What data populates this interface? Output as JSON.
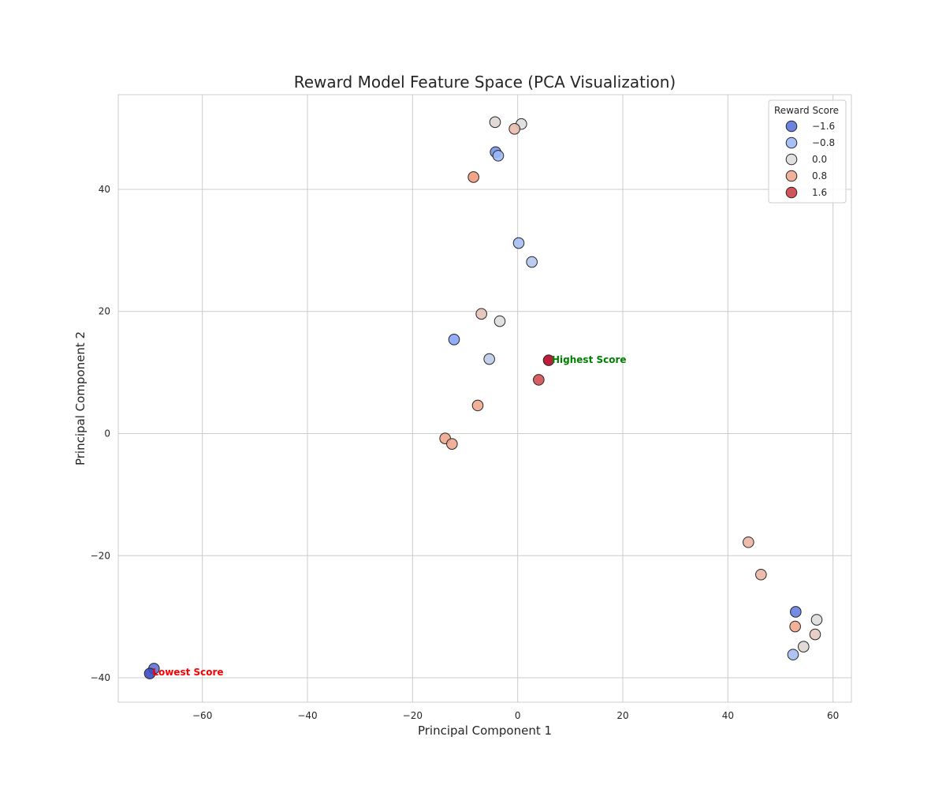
{
  "chart_data": {
    "type": "scatter",
    "title": "Reward Model Feature Space (PCA Visualization)",
    "xlabel": "Principal Component 1",
    "ylabel": "Principal Component 2",
    "xlim": [
      -76,
      63.5
    ],
    "ylim": [
      -44,
      55.5
    ],
    "xticks": [
      -60,
      -40,
      -20,
      0,
      20,
      40,
      60
    ],
    "yticks": [
      -40,
      -20,
      0,
      20,
      40
    ],
    "xtick_labels": [
      "−60",
      "−40",
      "−20",
      "0",
      "20",
      "40",
      "60"
    ],
    "ytick_labels": [
      "−40",
      "−20",
      "0",
      "20",
      "40"
    ],
    "grid": true,
    "colormap": "coolwarm",
    "color_range": [
      -2.0,
      2.0
    ],
    "legend": {
      "title": "Reward Score",
      "placement": "top-right",
      "entries": [
        {
          "label": "−1.6",
          "value": -1.6
        },
        {
          "label": "−0.8",
          "value": -0.8
        },
        {
          "label": "0.0",
          "value": 0.0
        },
        {
          "label": "0.8",
          "value": 0.8
        },
        {
          "label": "1.6",
          "value": 1.6
        }
      ]
    },
    "points": [
      {
        "x": -4.3,
        "y": 51.0,
        "score": 0.1
      },
      {
        "x": 0.7,
        "y": 50.7,
        "score": 0.0
      },
      {
        "x": -0.6,
        "y": 49.9,
        "score": 0.5
      },
      {
        "x": -4.2,
        "y": 46.1,
        "score": -1.3
      },
      {
        "x": -3.7,
        "y": 45.5,
        "score": -0.8
      },
      {
        "x": -8.4,
        "y": 42.0,
        "score": 1.0
      },
      {
        "x": 0.2,
        "y": 31.2,
        "score": -0.7
      },
      {
        "x": 2.7,
        "y": 28.1,
        "score": -0.5
      },
      {
        "x": -6.9,
        "y": 19.6,
        "score": 0.4
      },
      {
        "x": -3.4,
        "y": 18.4,
        "score": 0.0
      },
      {
        "x": -12.1,
        "y": 15.4,
        "score": -1.1
      },
      {
        "x": -5.4,
        "y": 12.2,
        "score": -0.4
      },
      {
        "x": 5.9,
        "y": 12.0,
        "score": 2.0
      },
      {
        "x": 4.0,
        "y": 8.8,
        "score": 1.5
      },
      {
        "x": -7.6,
        "y": 4.6,
        "score": 0.8
      },
      {
        "x": -13.8,
        "y": -0.8,
        "score": 0.8
      },
      {
        "x": -12.5,
        "y": -1.7,
        "score": 0.8
      },
      {
        "x": 43.9,
        "y": -17.8,
        "score": 0.6
      },
      {
        "x": 46.3,
        "y": -23.1,
        "score": 0.6
      },
      {
        "x": 52.9,
        "y": -29.2,
        "score": -1.5
      },
      {
        "x": 56.9,
        "y": -30.5,
        "score": 0.0
      },
      {
        "x": 52.8,
        "y": -31.6,
        "score": 0.8
      },
      {
        "x": 56.6,
        "y": -32.9,
        "score": 0.3
      },
      {
        "x": 54.4,
        "y": -34.9,
        "score": 0.1
      },
      {
        "x": 52.4,
        "y": -36.2,
        "score": -0.7
      },
      {
        "x": -69.2,
        "y": -38.5,
        "score": -1.6
      },
      {
        "x": -70.0,
        "y": -39.3,
        "score": -2.0
      }
    ],
    "annotations": [
      {
        "text": "Highest Score",
        "x": 6.5,
        "y": 12.1,
        "color": "#008000"
      },
      {
        "text": "Lowest Score",
        "x": -69.5,
        "y": -39.1,
        "color": "#ff0000"
      }
    ]
  }
}
